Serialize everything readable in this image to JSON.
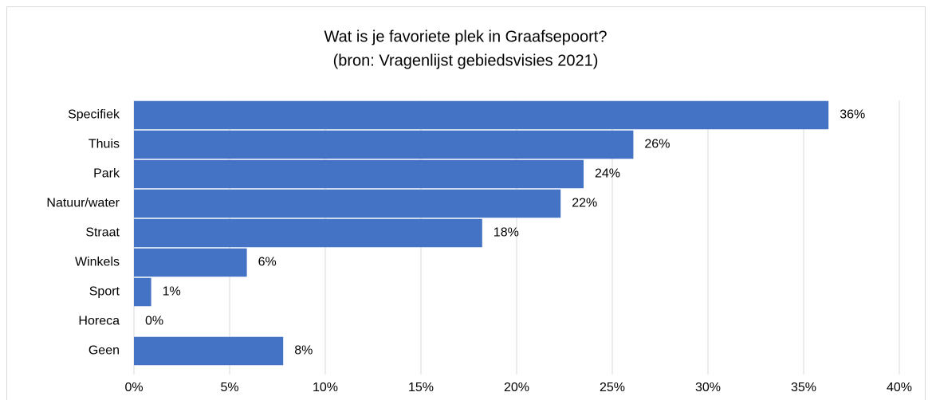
{
  "chart_data": {
    "type": "hbar",
    "title": "Wat is je favoriete plek in Graafsepoort?",
    "subtitle": "(bron: Vragenlijst gebiedsvisies 2021)",
    "categories": [
      "Specifiek",
      "Thuis",
      "Park",
      "Natuur/water",
      "Straat",
      "Winkels",
      "Sport",
      "Horeca",
      "Geen"
    ],
    "values": [
      36.3,
      26.1,
      23.5,
      22.3,
      18.2,
      5.9,
      0.9,
      0,
      7.8
    ],
    "value_labels": [
      "36%",
      "26%",
      "24%",
      "22%",
      "18%",
      "6%",
      "1%",
      "0%",
      "8%"
    ],
    "color": "#4472c4",
    "xlim": [
      0,
      40
    ],
    "xticks": [
      {
        "value": 0,
        "label": "0%"
      },
      {
        "value": 5,
        "label": "5%"
      },
      {
        "value": 10,
        "label": "10%"
      },
      {
        "value": 15,
        "label": "15%"
      },
      {
        "value": 20,
        "label": "20%"
      },
      {
        "value": 25,
        "label": "25%"
      },
      {
        "value": 30,
        "label": "30%"
      },
      {
        "value": 35,
        "label": "35%"
      },
      {
        "value": 40,
        "label": "40%"
      }
    ],
    "grid": true
  }
}
